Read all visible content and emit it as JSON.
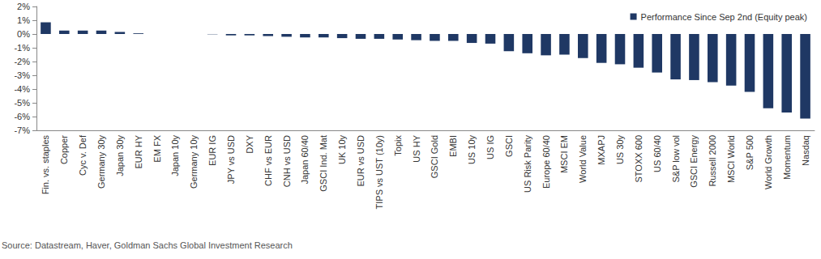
{
  "chart_data": {
    "type": "bar",
    "categories": [
      "Fin. vs. staples",
      "Copper",
      "Cyc v. Def",
      "Germany 30y",
      "Japan 30y",
      "EUR HY",
      "EM FX",
      "Japan 10y",
      "Germany 10y",
      "EUR IG",
      "JPY vs USD",
      "DXY",
      "CHF vs EUR",
      "CNH vs USD",
      "Japan 60/40",
      "GSCI Ind. Mat",
      "UK 10y",
      "EUR vs USD",
      "TIPS vs UST (10y)",
      "Topix",
      "US HY",
      "GSCI Gold",
      "EMBI",
      "US 10y",
      "US IG",
      "GSCI",
      "US Risk Parity",
      "Europe 60/40",
      "MSCI EM",
      "World Value",
      "MXAPJ",
      "US 30y",
      "STOXX 600",
      "US 60/40",
      "S&P low vol",
      "GSCI Energy",
      "Russell 2000",
      "MSCI World",
      "S&P 500",
      "World Growth",
      "Momentum",
      "Nasdaq"
    ],
    "series": [
      {
        "name": "Performance Since Sep 2nd (Equity peak)",
        "color": "#1f3864",
        "values": [
          0.85,
          0.25,
          0.25,
          0.25,
          0.15,
          0.05,
          0.0,
          0.0,
          0.0,
          -0.02,
          -0.1,
          -0.1,
          -0.15,
          -0.2,
          -0.25,
          -0.25,
          -0.3,
          -0.35,
          -0.35,
          -0.4,
          -0.45,
          -0.5,
          -0.5,
          -0.65,
          -0.7,
          -1.25,
          -1.4,
          -1.55,
          -1.5,
          -1.75,
          -2.1,
          -2.2,
          -2.45,
          -2.8,
          -3.3,
          -3.35,
          -3.5,
          -3.75,
          -4.2,
          -5.4,
          -5.7,
          -6.15
        ]
      }
    ],
    "ylim": [
      -7,
      2
    ],
    "yticks": [
      {
        "value": -7,
        "label": "-7%"
      },
      {
        "value": -6,
        "label": "-6%"
      },
      {
        "value": -5,
        "label": "-5%"
      },
      {
        "value": -4,
        "label": "-4%"
      },
      {
        "value": -3,
        "label": "-3%"
      },
      {
        "value": -2,
        "label": "-2%"
      },
      {
        "value": -1,
        "label": "-1%"
      },
      {
        "value": 0,
        "label": "0%"
      },
      {
        "value": 1,
        "label": "1%"
      },
      {
        "value": 2,
        "label": "2%"
      }
    ],
    "grid": false,
    "legend": "upper right",
    "annotations": [
      "Source: Datastream, Haver, Goldman Sachs Global Investment Research"
    ]
  }
}
